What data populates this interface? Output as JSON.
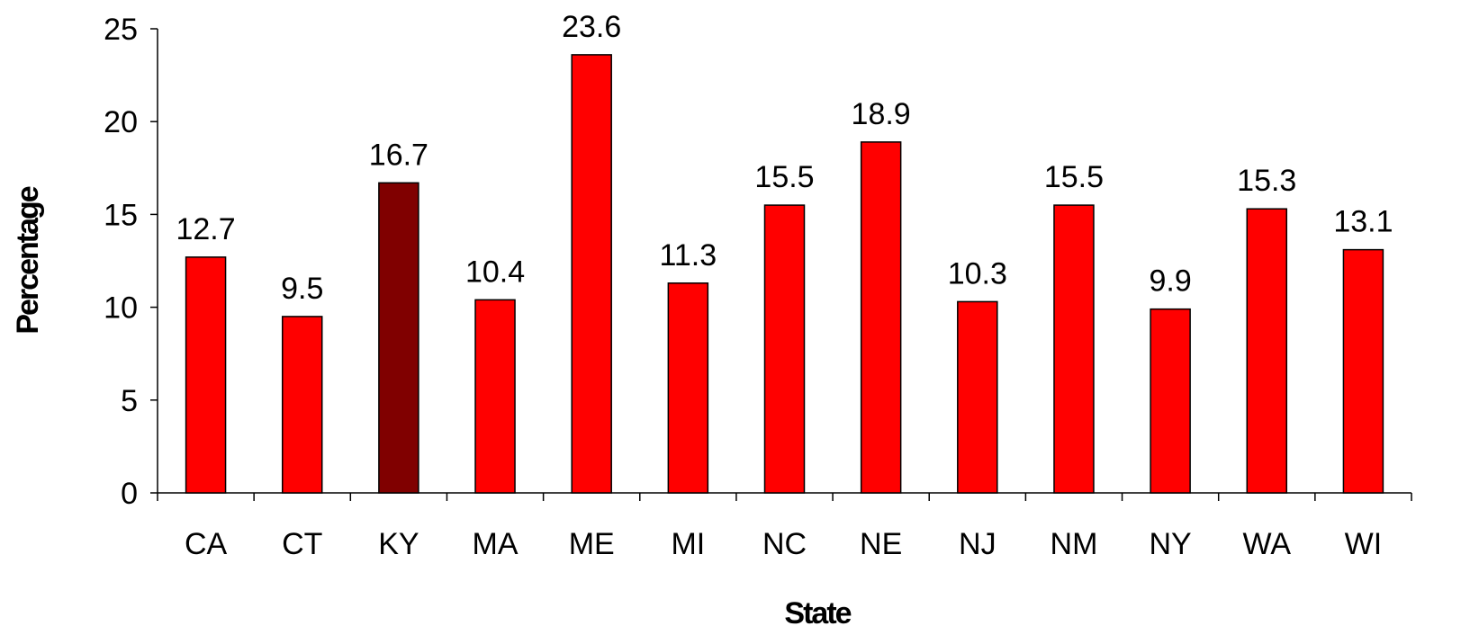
{
  "chart_data": {
    "type": "bar",
    "title": "",
    "xlabel": "State",
    "ylabel": "Percentage",
    "categories": [
      "CA",
      "CT",
      "KY",
      "MA",
      "ME",
      "MI",
      "NC",
      "NE",
      "NJ",
      "NM",
      "NY",
      "WA",
      "WI"
    ],
    "values": [
      12.7,
      9.5,
      16.7,
      10.4,
      23.6,
      11.3,
      15.5,
      18.9,
      10.3,
      15.5,
      9.9,
      15.3,
      13.1
    ],
    "value_labels": [
      "12.7",
      "9.5",
      "16.7",
      "10.4",
      "23.6",
      "11.3",
      "15.5",
      "18.9",
      "10.3",
      "15.5",
      "9.9",
      "15.3",
      "13.1"
    ],
    "ylim": [
      0,
      25
    ],
    "yticks": [
      0,
      5,
      10,
      15,
      20,
      25
    ],
    "grid": false,
    "legend": "none",
    "bar_color": "#ff0000",
    "highlight_category": "KY",
    "highlight_color": "#800000"
  }
}
